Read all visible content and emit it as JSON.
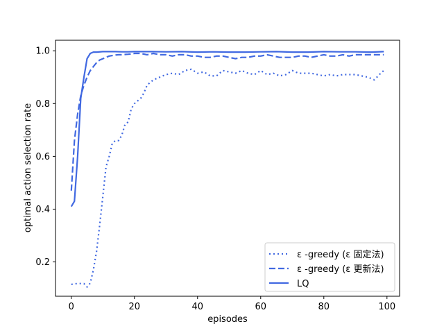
{
  "chart_data": {
    "type": "line",
    "xlabel": "episodes",
    "ylabel": "optimal action selection rate",
    "xlim": [
      -5,
      104
    ],
    "ylim": [
      0.07,
      1.04
    ],
    "xticks": [
      0,
      20,
      40,
      60,
      80,
      100
    ],
    "yticks": [
      0.2,
      0.4,
      0.6,
      0.8,
      1.0
    ],
    "xtick_labels": [
      "0",
      "20",
      "40",
      "60",
      "80",
      "100"
    ],
    "ytick_labels": [
      "0.2",
      "0.4",
      "0.6",
      "0.8",
      "1.0"
    ],
    "grid": false,
    "legend_position": "lower-right",
    "color": "#4169e1",
    "series": [
      {
        "name": "ε -greedy (ε 固定法)",
        "style": "dotted",
        "x": [
          0,
          1,
          2,
          3,
          4,
          5,
          6,
          7,
          8,
          9,
          10,
          11,
          12,
          13,
          14,
          15,
          16,
          17,
          18,
          19,
          20,
          21,
          22,
          23,
          24,
          25,
          26,
          27,
          28,
          29,
          30,
          32,
          34,
          36,
          38,
          40,
          42,
          44,
          46,
          48,
          50,
          52,
          54,
          56,
          58,
          60,
          62,
          64,
          66,
          68,
          70,
          72,
          74,
          76,
          78,
          80,
          82,
          84,
          86,
          88,
          90,
          92,
          94,
          96,
          98,
          99
        ],
        "y": [
          0.115,
          0.117,
          0.118,
          0.118,
          0.118,
          0.105,
          0.12,
          0.17,
          0.24,
          0.34,
          0.45,
          0.56,
          0.6,
          0.65,
          0.66,
          0.66,
          0.68,
          0.72,
          0.73,
          0.78,
          0.8,
          0.81,
          0.82,
          0.84,
          0.87,
          0.88,
          0.89,
          0.895,
          0.9,
          0.905,
          0.91,
          0.915,
          0.91,
          0.925,
          0.93,
          0.915,
          0.92,
          0.905,
          0.905,
          0.925,
          0.92,
          0.915,
          0.925,
          0.915,
          0.91,
          0.925,
          0.91,
          0.915,
          0.905,
          0.91,
          0.925,
          0.915,
          0.915,
          0.915,
          0.91,
          0.905,
          0.91,
          0.905,
          0.91,
          0.91,
          0.91,
          0.905,
          0.9,
          0.89,
          0.915,
          0.925
        ]
      },
      {
        "name": "ε -greedy (ε 更新法)",
        "style": "dashed",
        "x": [
          0,
          1,
          2,
          3,
          4,
          5,
          6,
          7,
          8,
          9,
          10,
          11,
          12,
          13,
          14,
          15,
          16,
          17,
          18,
          19,
          20,
          22,
          24,
          26,
          28,
          30,
          32,
          34,
          36,
          38,
          40,
          42,
          44,
          46,
          48,
          50,
          52,
          54,
          56,
          58,
          60,
          62,
          64,
          66,
          68,
          70,
          72,
          74,
          76,
          78,
          80,
          82,
          84,
          86,
          88,
          90,
          92,
          94,
          96,
          98,
          99
        ],
        "y": [
          0.47,
          0.66,
          0.76,
          0.83,
          0.87,
          0.9,
          0.925,
          0.94,
          0.955,
          0.965,
          0.97,
          0.975,
          0.98,
          0.982,
          0.984,
          0.985,
          0.985,
          0.986,
          0.987,
          0.988,
          0.99,
          0.99,
          0.985,
          0.99,
          0.985,
          0.985,
          0.98,
          0.985,
          0.985,
          0.98,
          0.98,
          0.975,
          0.975,
          0.98,
          0.98,
          0.975,
          0.97,
          0.975,
          0.975,
          0.98,
          0.98,
          0.985,
          0.98,
          0.975,
          0.975,
          0.975,
          0.98,
          0.98,
          0.975,
          0.98,
          0.985,
          0.98,
          0.98,
          0.985,
          0.98,
          0.985,
          0.985,
          0.985,
          0.985,
          0.985,
          0.985
        ]
      },
      {
        "name": "LQ",
        "style": "solid",
        "x": [
          0,
          1,
          2,
          3,
          4,
          5,
          6,
          7,
          8,
          10,
          12,
          14,
          16,
          18,
          20,
          25,
          30,
          35,
          40,
          45,
          50,
          55,
          60,
          65,
          70,
          75,
          80,
          85,
          90,
          95,
          99
        ],
        "y": [
          0.41,
          0.43,
          0.6,
          0.82,
          0.9,
          0.97,
          0.99,
          0.995,
          0.995,
          0.997,
          0.997,
          0.997,
          0.996,
          0.996,
          0.997,
          0.997,
          0.996,
          0.997,
          0.995,
          0.996,
          0.995,
          0.995,
          0.996,
          0.997,
          0.995,
          0.995,
          0.997,
          0.996,
          0.996,
          0.995,
          0.997
        ]
      }
    ]
  }
}
